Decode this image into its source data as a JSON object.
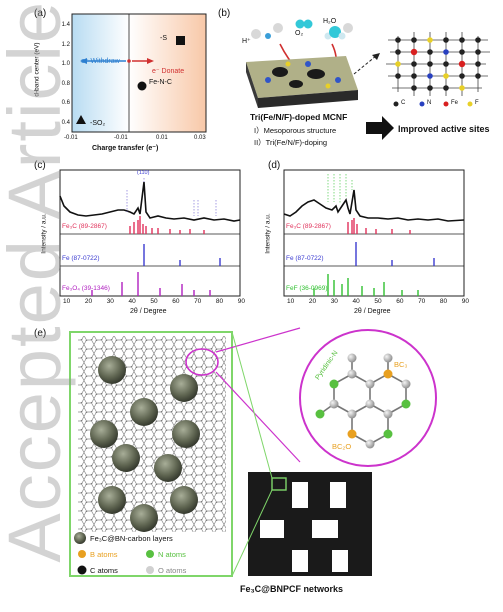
{
  "panel_a": {
    "label": "(a)",
    "ylabel": "d-band center (eV)",
    "xlabel": "Charge transfer (e⁻)",
    "withdraw": "e⁻ Withdraw",
    "donate": "e⁻ Donate",
    "points": [
      "-S",
      "Fe-N-C",
      "-SO₂"
    ],
    "yticks": [
      "1.4",
      "1.2",
      "1.0",
      "0.8",
      "0.6",
      "0.4"
    ],
    "xticks": [
      "-0.01",
      "-0.01",
      "0.01",
      "0.03"
    ]
  },
  "panel_b": {
    "label": "(b)",
    "species": [
      "H⁺",
      "O₂",
      "H₂O"
    ],
    "title": "Tri(Fe/N/F)-doped MCNF",
    "feature1": "I）Mesoporous structure",
    "feature2": "II）Tri(Fe/N/F)-doping",
    "result": "Improved active sites",
    "legend": [
      "C",
      "N",
      "Fe",
      "F"
    ]
  },
  "panel_c": {
    "label": "(c)",
    "ylabel": "Intensity / a.u.",
    "xlabel": "2θ / Degree",
    "xticks": [
      "10",
      "20",
      "30",
      "40",
      "50",
      "60",
      "70",
      "80",
      "90"
    ],
    "refs": [
      "Fe₃C (89-2867)",
      "Fe (87-0722)",
      "Fe₃O₄ (39-1346)"
    ],
    "peak_label": "(110)"
  },
  "panel_d": {
    "label": "(d)",
    "ylabel": "Intensity / a.u.",
    "xlabel": "2θ / Degree",
    "xticks": [
      "10",
      "20",
      "30",
      "40",
      "50",
      "60",
      "70",
      "80",
      "90"
    ],
    "refs": [
      "Fe₃C (89-2867)",
      "Fe (87-0722)",
      "FeF (36-0969)"
    ]
  },
  "panel_e": {
    "label": "(e)",
    "zoom_labels": [
      "Pyridinic-N",
      "BC₃",
      "BC₂O"
    ],
    "legend": [
      "Fe₃C@BN-carbon layers",
      "B atoms",
      "N atoms",
      "C atoms",
      "O atoms"
    ],
    "network_label": "Fe₃C@BNPCF networks"
  },
  "watermark": "Accepted Article",
  "colors": {
    "fe3c": "#e0305a",
    "fe": "#3a3ad0",
    "fe3o4": "#b020c0",
    "fef": "#30c030",
    "boron": "#e8a020",
    "nitrogen": "#58c040",
    "frame": "#7fd66a",
    "zoomring": "#cc33cc"
  }
}
